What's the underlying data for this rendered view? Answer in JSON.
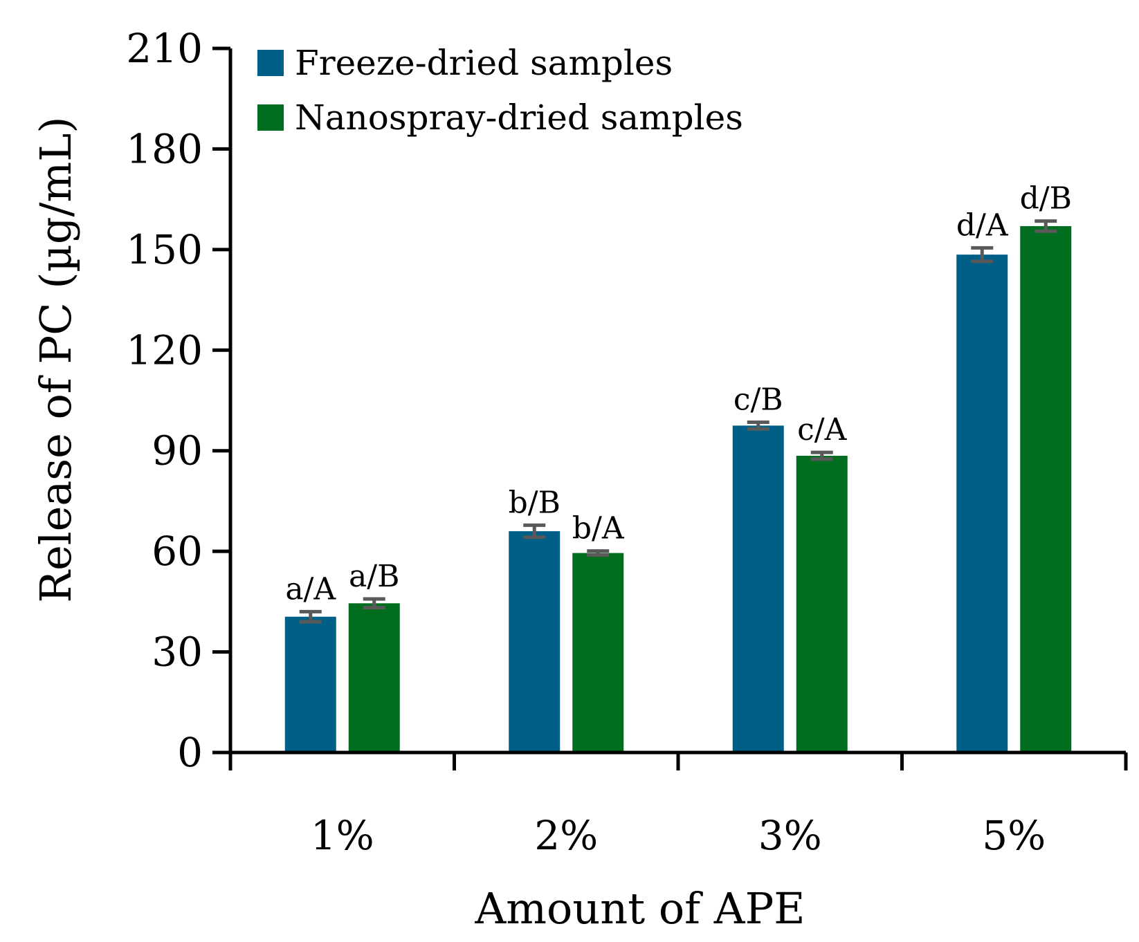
{
  "chart_data": {
    "type": "bar",
    "title": "",
    "xlabel": "Amount of APE",
    "ylabel": "Release of PC (µg/mL)",
    "ylim": [
      0,
      210
    ],
    "yticks": [
      0,
      30,
      60,
      90,
      120,
      150,
      180,
      210
    ],
    "categories": [
      "1%",
      "2%",
      "3%",
      "5%"
    ],
    "legend_position": "top-left",
    "grid": false,
    "series": [
      {
        "name": "Freeze-dried samples",
        "color": "#005F87",
        "values": [
          40.5,
          66,
          97.5,
          148.5
        ],
        "errors": [
          1.5,
          1.8,
          1.0,
          2.0
        ],
        "labels": [
          "a/A",
          "b/B",
          "c/B",
          "d/A"
        ]
      },
      {
        "name": "Nanospray-dried samples",
        "color": "#006E1E",
        "values": [
          44.5,
          59.5,
          88.5,
          157
        ],
        "errors": [
          1.3,
          0.6,
          1.0,
          1.5
        ],
        "labels": [
          "a/B",
          "b/A",
          "c/A",
          "d/B"
        ]
      }
    ],
    "error_bar_color": "#595959"
  }
}
